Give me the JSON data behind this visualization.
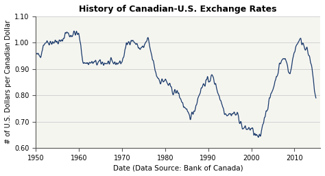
{
  "title": "History of Canadian-U.S. Exchange Rates",
  "xlabel": "Date (Data Source: Bank of Canada)",
  "ylabel": "# of U.S. Dollars per Canadian Dollar",
  "line_color": "#1a3a6b",
  "background_color": "#ffffff",
  "plot_bg_color": "#f5f5f0",
  "ylim": [
    0.6,
    1.1
  ],
  "xlim": [
    1950,
    2016
  ],
  "yticks": [
    0.6,
    0.7,
    0.8,
    0.9,
    1.0,
    1.1
  ],
  "xticks": [
    1950,
    1960,
    1970,
    1980,
    1990,
    2000,
    2010
  ],
  "years": [
    1950,
    1951,
    1952,
    1953,
    1954,
    1955,
    1956,
    1957,
    1958,
    1959,
    1960,
    1961,
    1962,
    1963,
    1964,
    1965,
    1966,
    1967,
    1968,
    1969,
    1970,
    1971,
    1972,
    1973,
    1974,
    1975,
    1976,
    1977,
    1978,
    1979,
    1980,
    1981,
    1982,
    1983,
    1984,
    1985,
    1986,
    1987,
    1988,
    1989,
    1990,
    1991,
    1992,
    1993,
    1994,
    1995,
    1996,
    1997,
    1998,
    1999,
    2000,
    2001,
    2002,
    2003,
    2004,
    2005,
    2006,
    2007,
    2008,
    2009,
    2010,
    2011,
    2012,
    2013,
    2014,
    2015
  ],
  "rates": [
    0.952,
    0.952,
    1.003,
    1.003,
    1.003,
    1.003,
    1.003,
    1.041,
    1.027,
    1.037,
    1.03,
    0.923,
    0.923,
    0.923,
    0.923,
    0.923,
    0.923,
    0.923,
    0.923,
    0.923,
    0.926,
    0.99,
    1.013,
    1.0,
    0.978,
    0.982,
    1.014,
    0.941,
    0.876,
    0.853,
    0.857,
    0.834,
    0.812,
    0.812,
    0.772,
    0.733,
    0.72,
    0.754,
    0.812,
    0.845,
    0.857,
    0.873,
    0.827,
    0.775,
    0.732,
    0.729,
    0.732,
    0.722,
    0.674,
    0.673,
    0.674,
    0.646,
    0.636,
    0.717,
    0.768,
    0.825,
    0.882,
    0.935,
    0.938,
    0.876,
    0.971,
    1.011,
    1.0,
    0.971,
    0.906,
    0.782
  ]
}
